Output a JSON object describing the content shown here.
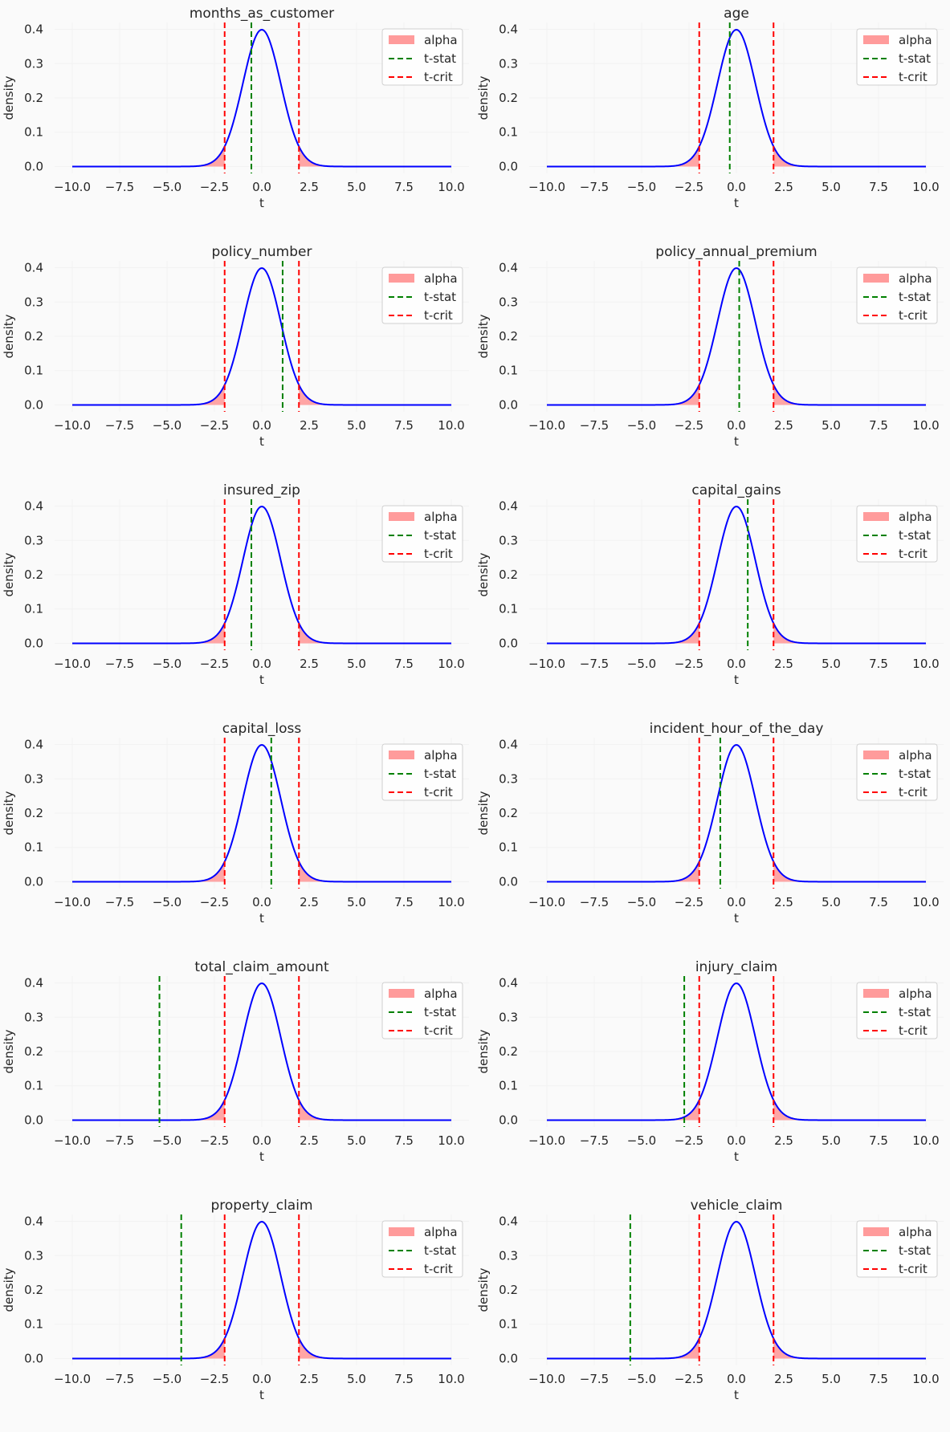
{
  "figure": {
    "layout": "6 rows x 2 columns",
    "colors": {
      "background": "#fafafa",
      "grid": "#ffffff",
      "curve": "#0000ff",
      "alpha_fill": "#ff9b9b",
      "t_stat": "#008000",
      "t_crit": "#ff0000",
      "legend_border": "#cccccc"
    }
  },
  "chart_data": [
    {
      "type": "line",
      "title": "months_as_customer",
      "xlabel": "t",
      "ylabel": "density",
      "xlim": [
        -10,
        10
      ],
      "ylim": [
        -0.02,
        0.42
      ],
      "xticks": [
        "−10.0",
        "−7.5",
        "−5.0",
        "−2.5",
        "0.0",
        "2.5",
        "5.0",
        "7.5",
        "10.0"
      ],
      "yticks": [
        "0.0",
        "0.1",
        "0.2",
        "0.3",
        "0.4"
      ],
      "legend": [
        "alpha",
        "t-stat",
        "t-crit"
      ],
      "legend_position": "top-right",
      "t_stat": -0.55,
      "t_crit": [
        -1.96,
        1.96
      ]
    },
    {
      "type": "line",
      "title": "age",
      "xlabel": "t",
      "ylabel": "density",
      "xlim": [
        -10,
        10
      ],
      "ylim": [
        -0.02,
        0.42
      ],
      "xticks": [
        "−10.0",
        "−7.5",
        "−5.0",
        "−2.5",
        "0.0",
        "2.5",
        "5.0",
        "7.5",
        "10.0"
      ],
      "yticks": [
        "0.0",
        "0.1",
        "0.2",
        "0.3",
        "0.4"
      ],
      "legend": [
        "alpha",
        "t-stat",
        "t-crit"
      ],
      "legend_position": "top-right",
      "t_stat": -0.35,
      "t_crit": [
        -1.96,
        1.96
      ]
    },
    {
      "type": "line",
      "title": "policy_number",
      "xlabel": "t",
      "ylabel": "density",
      "xlim": [
        -10,
        10
      ],
      "ylim": [
        -0.02,
        0.42
      ],
      "xticks": [
        "−10.0",
        "−7.5",
        "−5.0",
        "−2.5",
        "0.0",
        "2.5",
        "5.0",
        "7.5",
        "10.0"
      ],
      "yticks": [
        "0.0",
        "0.1",
        "0.2",
        "0.3",
        "0.4"
      ],
      "legend": [
        "alpha",
        "t-stat",
        "t-crit"
      ],
      "legend_position": "top-right",
      "t_stat": 1.1,
      "t_crit": [
        -1.96,
        1.96
      ]
    },
    {
      "type": "line",
      "title": "policy_annual_premium",
      "xlabel": "t",
      "ylabel": "density",
      "xlim": [
        -10,
        10
      ],
      "ylim": [
        -0.02,
        0.42
      ],
      "xticks": [
        "−10.0",
        "−7.5",
        "−5.0",
        "−2.5",
        "0.0",
        "2.5",
        "5.0",
        "7.5",
        "10.0"
      ],
      "yticks": [
        "0.0",
        "0.1",
        "0.2",
        "0.3",
        "0.4"
      ],
      "legend": [
        "alpha",
        "t-stat",
        "t-crit"
      ],
      "legend_position": "top-right",
      "t_stat": 0.15,
      "t_crit": [
        -1.96,
        1.96
      ]
    },
    {
      "type": "line",
      "title": "insured_zip",
      "xlabel": "t",
      "ylabel": "density",
      "xlim": [
        -10,
        10
      ],
      "ylim": [
        -0.02,
        0.42
      ],
      "xticks": [
        "−10.0",
        "−7.5",
        "−5.0",
        "−2.5",
        "0.0",
        "2.5",
        "5.0",
        "7.5",
        "10.0"
      ],
      "yticks": [
        "0.0",
        "0.1",
        "0.2",
        "0.3",
        "0.4"
      ],
      "legend": [
        "alpha",
        "t-stat",
        "t-crit"
      ],
      "legend_position": "top-right",
      "t_stat": -0.55,
      "t_crit": [
        -1.96,
        1.96
      ]
    },
    {
      "type": "line",
      "title": "capital_gains",
      "xlabel": "t",
      "ylabel": "density",
      "xlim": [
        -10,
        10
      ],
      "ylim": [
        -0.02,
        0.42
      ],
      "xticks": [
        "−10.0",
        "−7.5",
        "−5.0",
        "−2.5",
        "0.0",
        "2.5",
        "5.0",
        "7.5",
        "10.0"
      ],
      "yticks": [
        "0.0",
        "0.1",
        "0.2",
        "0.3",
        "0.4"
      ],
      "legend": [
        "alpha",
        "t-stat",
        "t-crit"
      ],
      "legend_position": "top-right",
      "t_stat": 0.6,
      "t_crit": [
        -1.96,
        1.96
      ]
    },
    {
      "type": "line",
      "title": "capital_loss",
      "xlabel": "t",
      "ylabel": "density",
      "xlim": [
        -10,
        10
      ],
      "ylim": [
        -0.02,
        0.42
      ],
      "xticks": [
        "−10.0",
        "−7.5",
        "−5.0",
        "−2.5",
        "0.0",
        "2.5",
        "5.0",
        "7.5",
        "10.0"
      ],
      "yticks": [
        "0.0",
        "0.1",
        "0.2",
        "0.3",
        "0.4"
      ],
      "legend": [
        "alpha",
        "t-stat",
        "t-crit"
      ],
      "legend_position": "top-right",
      "t_stat": 0.5,
      "t_crit": [
        -1.96,
        1.96
      ]
    },
    {
      "type": "line",
      "title": "incident_hour_of_the_day",
      "xlabel": "t",
      "ylabel": "density",
      "xlim": [
        -10,
        10
      ],
      "ylim": [
        -0.02,
        0.42
      ],
      "xticks": [
        "−10.0",
        "−7.5",
        "−5.0",
        "−2.5",
        "0.0",
        "2.5",
        "5.0",
        "7.5",
        "10.0"
      ],
      "yticks": [
        "0.0",
        "0.1",
        "0.2",
        "0.3",
        "0.4"
      ],
      "legend": [
        "alpha",
        "t-stat",
        "t-crit"
      ],
      "legend_position": "top-right",
      "t_stat": -0.85,
      "t_crit": [
        -1.96,
        1.96
      ]
    },
    {
      "type": "line",
      "title": "total_claim_amount",
      "xlabel": "t",
      "ylabel": "density",
      "xlim": [
        -10,
        10
      ],
      "ylim": [
        -0.02,
        0.42
      ],
      "xticks": [
        "−10.0",
        "−7.5",
        "−5.0",
        "−2.5",
        "0.0",
        "2.5",
        "5.0",
        "7.5",
        "10.0"
      ],
      "yticks": [
        "0.0",
        "0.1",
        "0.2",
        "0.3",
        "0.4"
      ],
      "legend": [
        "alpha",
        "t-stat",
        "t-crit"
      ],
      "legend_position": "top-right",
      "t_stat": -5.4,
      "t_crit": [
        -1.96,
        1.96
      ]
    },
    {
      "type": "line",
      "title": "injury_claim",
      "xlabel": "t",
      "ylabel": "density",
      "xlim": [
        -10,
        10
      ],
      "ylim": [
        -0.02,
        0.42
      ],
      "xticks": [
        "−10.0",
        "−7.5",
        "−5.0",
        "−2.5",
        "0.0",
        "2.5",
        "5.0",
        "7.5",
        "10.0"
      ],
      "yticks": [
        "0.0",
        "0.1",
        "0.2",
        "0.3",
        "0.4"
      ],
      "legend": [
        "alpha",
        "t-stat",
        "t-crit"
      ],
      "legend_position": "top-right",
      "t_stat": -2.75,
      "t_crit": [
        -1.96,
        1.96
      ]
    },
    {
      "type": "line",
      "title": "property_claim",
      "xlabel": "t",
      "ylabel": "density",
      "xlim": [
        -10,
        10
      ],
      "ylim": [
        -0.02,
        0.42
      ],
      "xticks": [
        "−10.0",
        "−7.5",
        "−5.0",
        "−2.5",
        "0.0",
        "2.5",
        "5.0",
        "7.5",
        "10.0"
      ],
      "yticks": [
        "0.0",
        "0.1",
        "0.2",
        "0.3",
        "0.4"
      ],
      "legend": [
        "alpha",
        "t-stat",
        "t-crit"
      ],
      "legend_position": "top-right",
      "t_stat": -4.25,
      "t_crit": [
        -1.96,
        1.96
      ]
    },
    {
      "type": "line",
      "title": "vehicle_claim",
      "xlabel": "t",
      "ylabel": "density",
      "xlim": [
        -10,
        10
      ],
      "ylim": [
        -0.02,
        0.42
      ],
      "xticks": [
        "−10.0",
        "−7.5",
        "−5.0",
        "−2.5",
        "0.0",
        "2.5",
        "5.0",
        "7.5",
        "10.0"
      ],
      "yticks": [
        "0.0",
        "0.1",
        "0.2",
        "0.3",
        "0.4"
      ],
      "legend": [
        "alpha",
        "t-stat",
        "t-crit"
      ],
      "legend_position": "top-right",
      "t_stat": -5.6,
      "t_crit": [
        -1.96,
        1.96
      ]
    }
  ]
}
